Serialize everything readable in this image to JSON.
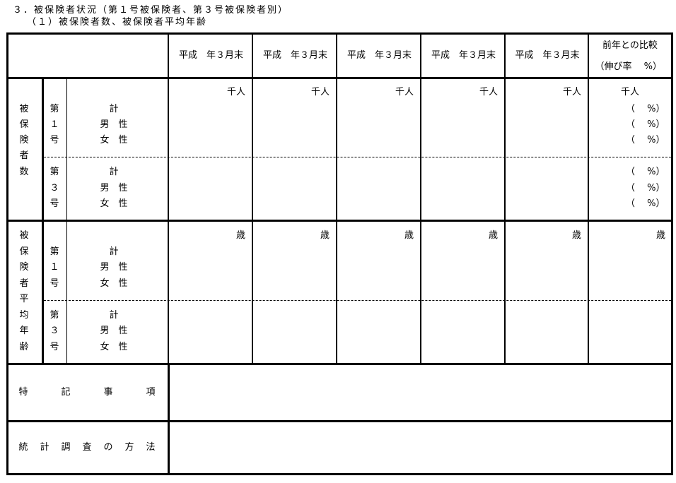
{
  "heading": "３．被保険者状況（第１号被保険者、第３号被保険者別）",
  "subheading": "（１）被保険者数、被保険者平均年齢",
  "table": {
    "year_headers": [
      "平成　年３月末",
      "平成　年３月末",
      "平成　年３月末",
      "平成　年３月末",
      "平成　年３月末"
    ],
    "comparison_header": [
      "前年との比較",
      "（伸び率　 %）"
    ],
    "section_insured_count": {
      "label": [
        "被",
        "保",
        "険",
        "者",
        "数"
      ],
      "unit": "千人",
      "comparison_unit": "千人",
      "pct_label": "（　 %）",
      "groups": [
        {
          "label": [
            "第",
            "１",
            "号"
          ],
          "rows": [
            "計",
            "男　性",
            "女　性"
          ]
        },
        {
          "label": [
            "第",
            "３",
            "号"
          ],
          "rows": [
            "計",
            "男　性",
            "女　性"
          ]
        }
      ]
    },
    "section_average_age": {
      "label": [
        "被",
        "保",
        "険",
        "者",
        "平",
        "均",
        "年",
        "齢"
      ],
      "unit": "歳",
      "groups": [
        {
          "label": [
            "第",
            "１",
            "号"
          ],
          "rows": [
            "計",
            "男　性",
            "女　性"
          ]
        },
        {
          "label": [
            "第",
            "３",
            "号"
          ],
          "rows": [
            "計",
            "男　性",
            "女　性"
          ]
        }
      ]
    },
    "special_notes_label": [
      "特",
      "記",
      "事",
      "項"
    ],
    "survey_method_label": [
      "統",
      "計",
      "調",
      "査",
      "の",
      "方",
      "法"
    ]
  }
}
